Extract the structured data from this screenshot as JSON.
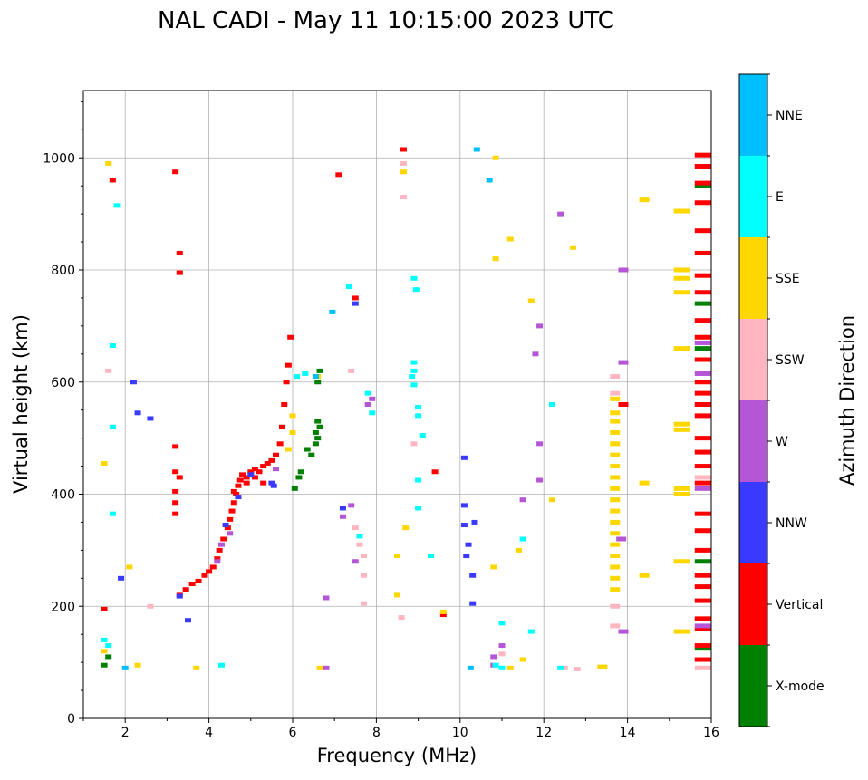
{
  "chart_data": {
    "type": "scatter",
    "title": "NAL CADI - May 11 10:15:00 2023 UTC",
    "xlabel": "Frequency (MHz)",
    "ylabel": "Virtual height (km)",
    "xlim": [
      1.0,
      16.0
    ],
    "ylim": [
      0,
      1120
    ],
    "xticks": [
      2,
      4,
      6,
      8,
      10,
      12,
      14,
      16
    ],
    "yticks": [
      0,
      200,
      400,
      600,
      800,
      1000
    ],
    "grid": true,
    "colorbar": {
      "label": "Azimuth Direction",
      "categories": [
        {
          "name": "X-mode",
          "color": "#008000"
        },
        {
          "name": "Vertical",
          "color": "#ff0000"
        },
        {
          "name": "NNW",
          "color": "#3a3aff"
        },
        {
          "name": "W",
          "color": "#b556d6"
        },
        {
          "name": "SSW",
          "color": "#ffb6c1"
        },
        {
          "name": "SSE",
          "color": "#ffd700"
        },
        {
          "name": "E",
          "color": "#00ffff"
        },
        {
          "name": "NNE",
          "color": "#00bfff"
        }
      ]
    },
    "series": [
      {
        "name": "X-mode",
        "color": "#008000",
        "points": [
          [
            6.55,
            490
          ],
          [
            6.6,
            500
          ],
          [
            6.55,
            510
          ],
          [
            6.65,
            520
          ],
          [
            6.6,
            530
          ],
          [
            6.35,
            480
          ],
          [
            6.45,
            470
          ],
          [
            6.2,
            440
          ],
          [
            6.15,
            430
          ],
          [
            6.05,
            410
          ],
          [
            6.6,
            600
          ],
          [
            6.65,
            620
          ],
          [
            15.8,
            125
          ],
          [
            15.8,
            280
          ],
          [
            15.8,
            740
          ],
          [
            15.8,
            950
          ],
          [
            15.8,
            660
          ],
          [
            1.5,
            95
          ],
          [
            1.6,
            110
          ]
        ]
      },
      {
        "name": "Vertical",
        "color": "#ff0000",
        "points": [
          [
            3.3,
            220
          ],
          [
            3.45,
            230
          ],
          [
            3.6,
            240
          ],
          [
            3.75,
            245
          ],
          [
            3.9,
            255
          ],
          [
            4.0,
            262
          ],
          [
            4.1,
            270
          ],
          [
            4.2,
            285
          ],
          [
            4.25,
            300
          ],
          [
            4.35,
            320
          ],
          [
            4.45,
            340
          ],
          [
            4.5,
            355
          ],
          [
            4.55,
            370
          ],
          [
            4.6,
            385
          ],
          [
            4.65,
            400
          ],
          [
            4.7,
            415
          ],
          [
            4.75,
            425
          ],
          [
            4.8,
            435
          ],
          [
            4.9,
            430
          ],
          [
            5.0,
            440
          ],
          [
            5.1,
            445
          ],
          [
            5.2,
            440
          ],
          [
            5.3,
            450
          ],
          [
            5.4,
            455
          ],
          [
            5.5,
            460
          ],
          [
            5.6,
            470
          ],
          [
            5.7,
            490
          ],
          [
            5.75,
            520
          ],
          [
            5.8,
            560
          ],
          [
            5.85,
            600
          ],
          [
            5.9,
            630
          ],
          [
            5.95,
            680
          ],
          [
            4.9,
            420
          ],
          [
            5.1,
            430
          ],
          [
            5.3,
            420
          ],
          [
            4.6,
            405
          ],
          [
            3.2,
            975
          ],
          [
            3.3,
            830
          ],
          [
            3.3,
            795
          ],
          [
            3.2,
            485
          ],
          [
            3.2,
            440
          ],
          [
            3.3,
            430
          ],
          [
            3.2,
            405
          ],
          [
            3.2,
            385
          ],
          [
            3.2,
            365
          ],
          [
            7.1,
            970
          ],
          [
            7.5,
            750
          ],
          [
            8.65,
            1015
          ],
          [
            9.4,
            440
          ],
          [
            9.6,
            185
          ],
          [
            15.8,
            105
          ],
          [
            15.8,
            130
          ],
          [
            15.8,
            160
          ],
          [
            15.8,
            178
          ],
          [
            15.8,
            210
          ],
          [
            15.8,
            235
          ],
          [
            15.8,
            255
          ],
          [
            15.8,
            300
          ],
          [
            15.8,
            335
          ],
          [
            15.8,
            365
          ],
          [
            15.8,
            420
          ],
          [
            15.8,
            450
          ],
          [
            15.8,
            475
          ],
          [
            15.8,
            500
          ],
          [
            15.8,
            540
          ],
          [
            15.8,
            560
          ],
          [
            15.8,
            580
          ],
          [
            15.8,
            600
          ],
          [
            15.8,
            640
          ],
          [
            15.8,
            680
          ],
          [
            15.8,
            710
          ],
          [
            15.8,
            760
          ],
          [
            15.8,
            790
          ],
          [
            15.8,
            830
          ],
          [
            15.8,
            870
          ],
          [
            15.8,
            920
          ],
          [
            15.8,
            955
          ],
          [
            15.8,
            985
          ],
          [
            15.8,
            1005
          ],
          [
            13.9,
            560
          ],
          [
            1.5,
            195
          ],
          [
            1.7,
            960
          ]
        ]
      },
      {
        "name": "NNW",
        "color": "#3a3aff",
        "points": [
          [
            3.3,
            218
          ],
          [
            4.4,
            345
          ],
          [
            4.7,
            395
          ],
          [
            5.0,
            435
          ],
          [
            5.5,
            420
          ],
          [
            5.55,
            415
          ],
          [
            10.1,
            465
          ],
          [
            10.1,
            380
          ],
          [
            10.1,
            345
          ],
          [
            10.2,
            310
          ],
          [
            10.15,
            290
          ],
          [
            10.3,
            255
          ],
          [
            10.3,
            205
          ],
          [
            10.35,
            350
          ],
          [
            3.5,
            175
          ],
          [
            2.3,
            545
          ],
          [
            2.6,
            535
          ],
          [
            2.2,
            600
          ],
          [
            1.9,
            250
          ],
          [
            7.2,
            375
          ],
          [
            7.5,
            740
          ]
        ]
      },
      {
        "name": "W",
        "color": "#b556d6",
        "points": [
          [
            4.2,
            280
          ],
          [
            4.3,
            310
          ],
          [
            4.5,
            330
          ],
          [
            5.6,
            445
          ],
          [
            7.9,
            570
          ],
          [
            7.8,
            560
          ],
          [
            10.8,
            95
          ],
          [
            10.8,
            110
          ],
          [
            11.0,
            130
          ],
          [
            11.5,
            390
          ],
          [
            11.9,
            425
          ],
          [
            11.9,
            490
          ],
          [
            11.8,
            650
          ],
          [
            11.9,
            700
          ],
          [
            12.4,
            900
          ],
          [
            13.9,
            800
          ],
          [
            13.9,
            635
          ],
          [
            13.9,
            155
          ],
          [
            13.85,
            320
          ],
          [
            15.8,
            165
          ],
          [
            15.8,
            410
          ],
          [
            15.8,
            615
          ],
          [
            15.8,
            670
          ],
          [
            6.8,
            90
          ],
          [
            6.8,
            215
          ],
          [
            7.5,
            280
          ],
          [
            7.2,
            360
          ],
          [
            7.4,
            380
          ]
        ]
      },
      {
        "name": "SSW",
        "color": "#ffb6c1",
        "points": [
          [
            13.7,
            200
          ],
          [
            13.7,
            165
          ],
          [
            13.7,
            610
          ],
          [
            13.7,
            580
          ],
          [
            12.5,
            90
          ],
          [
            12.8,
            88
          ],
          [
            11.0,
            115
          ],
          [
            7.5,
            340
          ],
          [
            7.6,
            310
          ],
          [
            7.7,
            290
          ],
          [
            7.7,
            255
          ],
          [
            7.7,
            205
          ],
          [
            7.4,
            620
          ],
          [
            8.6,
            180
          ],
          [
            8.9,
            490
          ],
          [
            8.65,
            930
          ],
          [
            8.65,
            990
          ],
          [
            15.8,
            90
          ],
          [
            15.8,
            430
          ],
          [
            2.6,
            200
          ],
          [
            1.6,
            620
          ]
        ]
      },
      {
        "name": "SSE",
        "color": "#ffd700",
        "points": [
          [
            13.7,
            570
          ],
          [
            13.7,
            545
          ],
          [
            13.7,
            530
          ],
          [
            13.7,
            510
          ],
          [
            13.7,
            490
          ],
          [
            13.7,
            470
          ],
          [
            13.7,
            450
          ],
          [
            13.7,
            430
          ],
          [
            13.7,
            410
          ],
          [
            13.7,
            390
          ],
          [
            13.7,
            370
          ],
          [
            13.7,
            350
          ],
          [
            13.7,
            330
          ],
          [
            13.7,
            310
          ],
          [
            13.7,
            290
          ],
          [
            13.7,
            270
          ],
          [
            13.7,
            250
          ],
          [
            13.7,
            230
          ],
          [
            6.0,
            510
          ],
          [
            6.0,
            540
          ],
          [
            5.9,
            480
          ],
          [
            6.6,
            610
          ],
          [
            15.3,
            155
          ],
          [
            15.3,
            280
          ],
          [
            15.3,
            400
          ],
          [
            15.3,
            410
          ],
          [
            15.3,
            515
          ],
          [
            15.3,
            525
          ],
          [
            15.3,
            660
          ],
          [
            15.3,
            760
          ],
          [
            15.3,
            785
          ],
          [
            15.3,
            800
          ],
          [
            15.3,
            905
          ],
          [
            14.4,
            925
          ],
          [
            14.4,
            420
          ],
          [
            14.4,
            255
          ],
          [
            12.7,
            840
          ],
          [
            11.2,
            855
          ],
          [
            10.85,
            820
          ],
          [
            11.7,
            745
          ],
          [
            12.2,
            390
          ],
          [
            11.4,
            300
          ],
          [
            11.5,
            105
          ],
          [
            11.2,
            90
          ],
          [
            10.8,
            270
          ],
          [
            8.5,
            290
          ],
          [
            8.7,
            340
          ],
          [
            8.5,
            220
          ],
          [
            9.6,
            190
          ],
          [
            8.65,
            975
          ],
          [
            10.85,
            1000
          ],
          [
            3.7,
            90
          ],
          [
            2.3,
            95
          ],
          [
            2.1,
            270
          ],
          [
            1.5,
            120
          ],
          [
            1.6,
            990
          ],
          [
            1.5,
            455
          ],
          [
            13.4,
            92
          ],
          [
            6.65,
            90
          ]
        ]
      },
      {
        "name": "E",
        "color": "#00ffff",
        "points": [
          [
            8.9,
            785
          ],
          [
            8.95,
            765
          ],
          [
            8.9,
            635
          ],
          [
            8.9,
            620
          ],
          [
            8.85,
            610
          ],
          [
            8.9,
            595
          ],
          [
            9.0,
            555
          ],
          [
            9.0,
            540
          ],
          [
            9.1,
            505
          ],
          [
            9.0,
            425
          ],
          [
            9.0,
            375
          ],
          [
            9.3,
            290
          ],
          [
            11.5,
            320
          ],
          [
            11.7,
            155
          ],
          [
            11.0,
            170
          ],
          [
            12.2,
            560
          ],
          [
            12.4,
            90
          ],
          [
            7.35,
            770
          ],
          [
            7.8,
            580
          ],
          [
            7.9,
            545
          ],
          [
            6.1,
            610
          ],
          [
            6.3,
            615
          ],
          [
            1.5,
            140
          ],
          [
            1.6,
            130
          ],
          [
            1.7,
            365
          ],
          [
            1.7,
            520
          ],
          [
            1.8,
            915
          ],
          [
            1.7,
            665
          ],
          [
            4.3,
            95
          ],
          [
            11.0,
            90
          ],
          [
            10.85,
            95
          ],
          [
            7.6,
            325
          ]
        ]
      },
      {
        "name": "NNE",
        "color": "#00bfff",
        "points": [
          [
            10.4,
            1015
          ],
          [
            10.7,
            960
          ],
          [
            6.95,
            725
          ],
          [
            6.55,
            610
          ],
          [
            10.25,
            90
          ],
          [
            2.0,
            90
          ]
        ]
      }
    ]
  }
}
